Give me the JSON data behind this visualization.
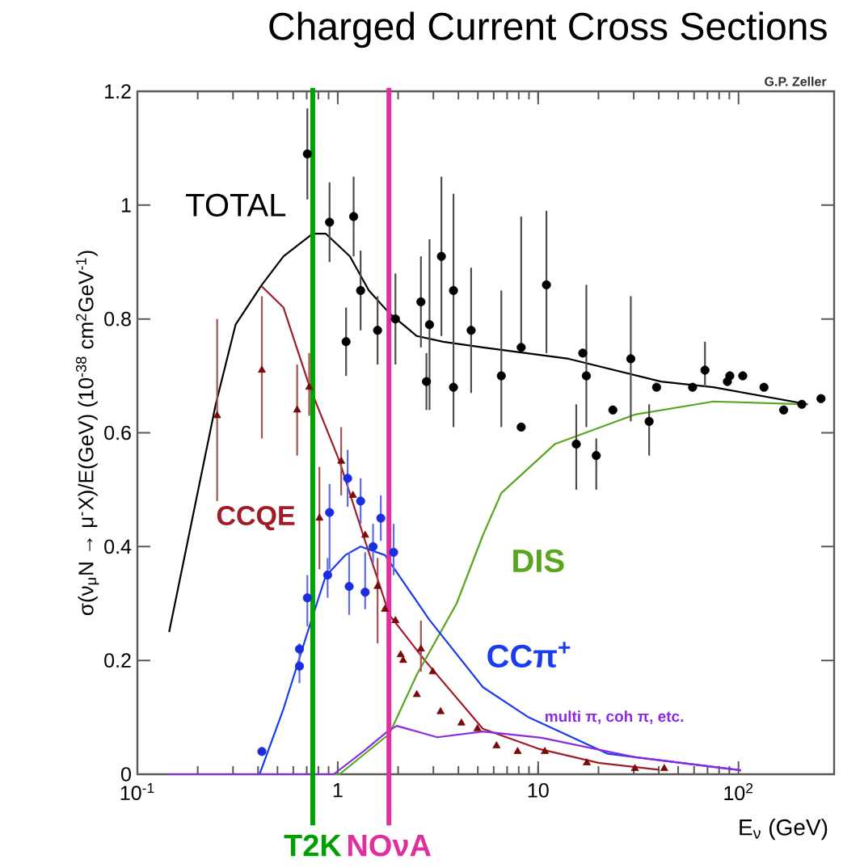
{
  "chart_data": {
    "type": "line",
    "title": "Charged Current Cross Sections",
    "xlabel": "E$_{ν}$ (GeV)",
    "ylabel": "σ(ν$_{μ}$N → μ$^{-}$X)/E(GeV)   (10$^{-38}$ cm$^{2}$GeV$^{-1}$)",
    "annotations": [
      "G.P. Zeller"
    ],
    "log": "x",
    "xlim": [
      0.1,
      300
    ],
    "ylim": [
      0,
      1.2
    ],
    "xticks": [
      {
        "value": 0.1,
        "label": "10$^{-1}$"
      },
      1,
      10,
      {
        "value": 100,
        "label": "10$^{2}$"
      }
    ],
    "yticks": [
      0,
      0.2,
      0.4,
      0.6,
      0.8,
      1,
      1.2
    ],
    "marker": "none",
    "line_style": "solid",
    "ref_lines": [
      {
        "axis": "x",
        "value": 0.75,
        "label": "T2K",
        "color": "#00a000"
      },
      {
        "axis": "x",
        "value": 1.8,
        "label": "NOνA",
        "color": "#e030a0"
      }
    ],
    "series": [
      {
        "name": "TOTAL",
        "color": "#000000",
        "x": [
          0.144,
          0.246,
          0.309,
          0.418,
          0.536,
          0.75,
          0.87,
          1.15,
          1.43,
          1.81,
          2.48,
          3.36,
          5.3,
          14.2,
          41,
          75,
          222
        ],
        "values": [
          0.25,
          0.65,
          0.79,
          0.86,
          0.91,
          0.95,
          0.95,
          0.91,
          0.85,
          0.81,
          0.77,
          0.76,
          0.75,
          0.73,
          0.69,
          0.68,
          0.65
        ]
      },
      {
        "name": "CCQE",
        "color": "#a01c28",
        "x": [
          0.418,
          0.536,
          0.725,
          1.02,
          1.34,
          1.81,
          2.72,
          5.3,
          10,
          20,
          40
        ],
        "values": [
          0.857,
          0.82,
          0.68,
          0.55,
          0.42,
          0.28,
          0.2,
          0.08,
          0.045,
          0.02,
          0.008
        ]
      },
      {
        "name": "DIS",
        "color": "#5aa520",
        "x": [
          0.144,
          1.02,
          1.81,
          2.48,
          3.92,
          5.3,
          6.55,
          12.1,
          30.4,
          75,
          222
        ],
        "values": [
          0,
          0,
          0.071,
          0.175,
          0.3,
          0.42,
          0.494,
          0.58,
          0.632,
          0.655,
          0.65
        ]
      },
      {
        "name": "CCπ$^{+}$",
        "color": "#1a3cf0",
        "x": [
          0.144,
          0.407,
          0.536,
          0.706,
          0.87,
          1.09,
          1.3,
          1.72,
          2.87,
          5.3,
          8.96,
          22.3,
          103
        ],
        "values": [
          0,
          0,
          0.115,
          0.249,
          0.348,
          0.385,
          0.4,
          0.385,
          0.271,
          0.153,
          0.1,
          0.036,
          0.007
        ]
      },
      {
        "name": "multi π, coh π, etc.",
        "color": "#8a2be2",
        "x": [
          0.144,
          0.955,
          1.34,
          1.77,
          1.97,
          3.14,
          5.3,
          10.4,
          30.4,
          103
        ],
        "values": [
          0,
          0,
          0.04,
          0.075,
          0.085,
          0.065,
          0.075,
          0.064,
          0.03,
          0.007
        ]
      },
      {
        "type": "scatter",
        "marker": "circle",
        "color": "#000000",
        "x": [
          0.705,
          0.91,
          1.2,
          1.1,
          1.3,
          1.58,
          1.94,
          2.6,
          2.87,
          3.29,
          3.78,
          3.78,
          4.63,
          2.77,
          6.55,
          8.23,
          8.23,
          11.0,
          16.7,
          17.4,
          15.5,
          19.5,
          23.6,
          29,
          35.8,
          39,
          59,
          68,
          88,
          90.5,
          105,
          134,
          168,
          207,
          258
        ],
        "values": [
          1.09,
          0.97,
          0.98,
          0.76,
          0.85,
          0.78,
          0.8,
          0.83,
          0.79,
          0.91,
          0.85,
          0.68,
          0.78,
          0.69,
          0.7,
          0.75,
          0.61,
          0.86,
          0.74,
          0.7,
          0.58,
          0.56,
          0.64,
          0.73,
          0.62,
          0.68,
          0.68,
          0.71,
          0.69,
          0.7,
          0.7,
          0.68,
          0.64,
          0.65,
          0.66
        ],
        "errors": [
          [
            1.01,
            1.17
          ],
          [
            0.9,
            1.04
          ],
          [
            0.91,
            1.05
          ],
          [
            0.7,
            0.82
          ],
          [
            0.78,
            0.92
          ],
          [
            0.72,
            0.84
          ],
          [
            0.72,
            0.88
          ],
          [
            0.75,
            0.91
          ],
          [
            0.64,
            0.94
          ],
          [
            0.77,
            1.05
          ],
          [
            0.61,
            1.02
          ],
          null,
          [
            0.67,
            0.89
          ],
          [
            0.64,
            0.74
          ],
          [
            0.61,
            0.85
          ],
          [
            0.75,
            0.98
          ],
          null,
          [
            0.74,
            0.99
          ],
          null,
          [
            0.61,
            0.86
          ],
          [
            0.5,
            0.65
          ],
          [
            0.5,
            0.59
          ],
          null,
          [
            0.62,
            0.84
          ],
          [
            0.56,
            0.65
          ],
          null,
          null,
          [
            0.68,
            0.76
          ],
          null,
          null,
          null,
          null,
          null,
          null,
          null
        ]
      },
      {
        "type": "scatter",
        "marker": "triangle",
        "color": "#7a0a0a",
        "x": [
          0.25,
          0.418,
          0.627,
          0.72,
          0.81,
          1.04,
          1.19,
          1.37,
          1.58,
          1.72,
          1.94,
          2.06,
          2.12,
          2.48,
          2.6,
          2.98,
          3.26,
          4.14,
          4.98,
          6.2,
          7.9,
          10.8,
          17.5,
          30.4,
          42.6
        ],
        "values": [
          0.63,
          0.71,
          0.64,
          0.68,
          0.45,
          0.55,
          0.49,
          0.42,
          0.33,
          0.29,
          0.27,
          0.21,
          0.2,
          0.14,
          0.22,
          0.18,
          0.11,
          0.09,
          0.08,
          0.05,
          0.04,
          0.04,
          0.02,
          0.01,
          0.01
        ],
        "errors": [
          [
            0.48,
            0.8
          ],
          [
            0.59,
            0.84
          ],
          [
            0.56,
            0.72
          ],
          [
            0.63,
            0.74
          ],
          [
            0.36,
            0.54
          ],
          [
            0.49,
            0.61
          ],
          null,
          null,
          [
            0.23,
            0.38
          ],
          null,
          null,
          null,
          null,
          null,
          [
            0.18,
            0.27
          ],
          null,
          null,
          null,
          null,
          null,
          null,
          null,
          null,
          null,
          null
        ]
      },
      {
        "type": "scatter",
        "marker": "circle",
        "color": "#1a2ee0",
        "x": [
          0.418,
          0.644,
          0.644,
          0.705,
          0.89,
          0.91,
          1.12,
          1.14,
          1.3,
          1.37,
          1.5,
          1.64,
          1.9
        ],
        "values": [
          0.04,
          0.22,
          0.19,
          0.31,
          0.35,
          0.46,
          0.52,
          0.33,
          0.48,
          0.32,
          0.4,
          0.45,
          0.39
        ],
        "errors": [
          null,
          [
            0.16,
            0.23
          ],
          null,
          [
            0.26,
            0.35
          ],
          [
            0.31,
            0.38
          ],
          [
            0.36,
            0.51
          ],
          [
            0.47,
            0.57
          ],
          [
            0.28,
            0.39
          ],
          [
            0.44,
            0.52
          ],
          [
            0.29,
            0.39
          ],
          [
            0.37,
            0.44
          ],
          [
            0.41,
            0.49
          ],
          [
            0.35,
            0.44
          ]
        ]
      }
    ]
  }
}
